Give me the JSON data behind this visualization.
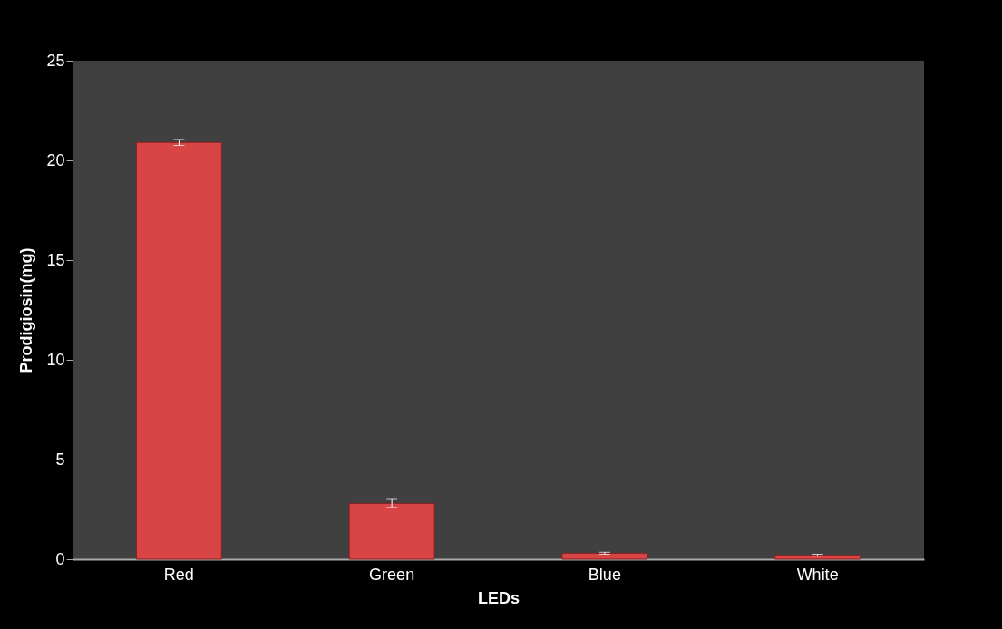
{
  "chart_data": {
    "type": "bar",
    "xlabel": "LEDs",
    "ylabel": "Prodigiosin(mg)",
    "categories": [
      "Red",
      "Green",
      "Blue",
      "White"
    ],
    "values": [
      20.9,
      2.8,
      0.3,
      0.2
    ],
    "errors": [
      0.15,
      0.2,
      0.05,
      0.05
    ],
    "color": "#d94545",
    "ylim": [
      0,
      25
    ],
    "yticks": [
      0,
      5,
      10,
      15,
      20,
      25
    ],
    "grid": false
  }
}
